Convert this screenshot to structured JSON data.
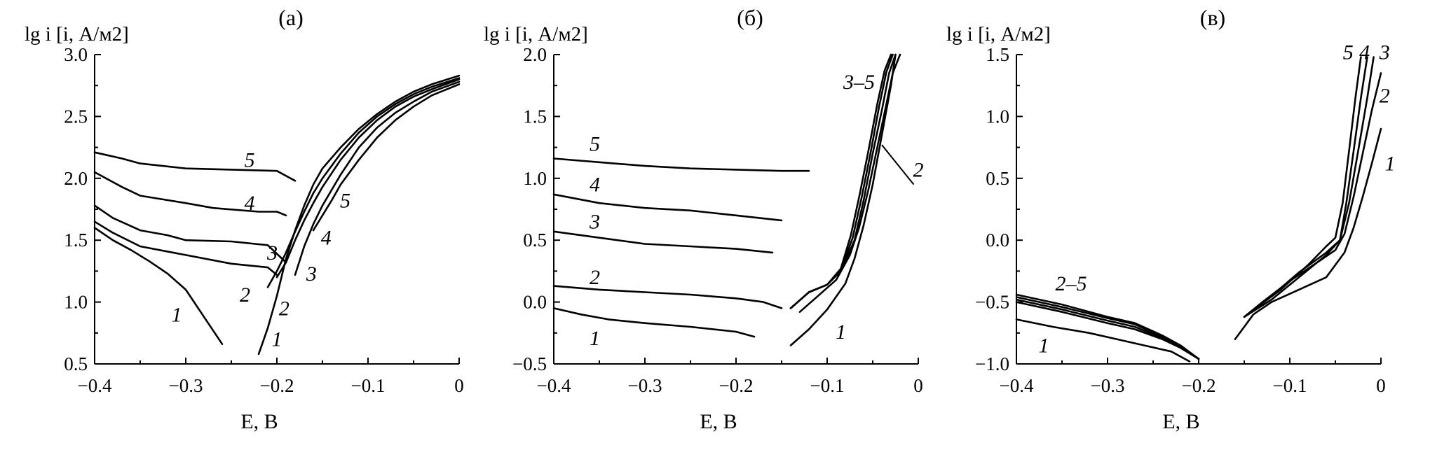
{
  "chart_data": [
    {
      "type": "line",
      "panel_label": "(а)",
      "ylabel": "lg i [i, А/м2]",
      "xlabel": "E, В",
      "xlim": [
        -0.4,
        0
      ],
      "ylim": [
        0.5,
        3.0
      ],
      "xticks": [
        -0.4,
        -0.3,
        -0.2,
        -0.1,
        0
      ],
      "xtick_labels": [
        "−0.4",
        "−0.3",
        "−0.2",
        "−0.1",
        "0"
      ],
      "yticks": [
        0.5,
        1.0,
        1.5,
        2.0,
        2.5,
        3.0
      ],
      "ytick_labels": [
        "0.5",
        "1.0",
        "1.5",
        "2.0",
        "2.5",
        "3.0"
      ],
      "grid": false,
      "series": [
        {
          "name": "1",
          "branch": "cathodic",
          "x": [
            -0.4,
            -0.38,
            -0.36,
            -0.34,
            -0.32,
            -0.3,
            -0.28,
            -0.26
          ],
          "y": [
            1.6,
            1.5,
            1.42,
            1.33,
            1.23,
            1.1,
            0.88,
            0.66
          ]
        },
        {
          "name": "2",
          "branch": "cathodic",
          "x": [
            -0.4,
            -0.38,
            -0.35,
            -0.3,
            -0.25,
            -0.21,
            -0.2
          ],
          "y": [
            1.65,
            1.56,
            1.45,
            1.38,
            1.31,
            1.28,
            1.22
          ]
        },
        {
          "name": "3",
          "branch": "cathodic",
          "x": [
            -0.4,
            -0.38,
            -0.35,
            -0.32,
            -0.3,
            -0.25,
            -0.21,
            -0.19
          ],
          "y": [
            1.78,
            1.68,
            1.58,
            1.54,
            1.5,
            1.49,
            1.46,
            1.32
          ]
        },
        {
          "name": "4",
          "branch": "cathodic",
          "x": [
            -0.4,
            -0.37,
            -0.35,
            -0.3,
            -0.27,
            -0.22,
            -0.2,
            -0.19
          ],
          "y": [
            2.05,
            1.93,
            1.86,
            1.8,
            1.76,
            1.73,
            1.73,
            1.7
          ]
        },
        {
          "name": "5",
          "branch": "cathodic",
          "x": [
            -0.4,
            -0.37,
            -0.35,
            -0.3,
            -0.25,
            -0.2,
            -0.18
          ],
          "y": [
            2.21,
            2.16,
            2.12,
            2.08,
            2.07,
            2.06,
            1.98
          ]
        },
        {
          "name": "1",
          "branch": "anodic",
          "x": [
            -0.22,
            -0.21,
            -0.2,
            -0.19,
            -0.18,
            -0.17,
            -0.16,
            -0.15,
            -0.13,
            -0.11,
            -0.09,
            -0.07,
            -0.05,
            -0.03,
            0.0
          ],
          "y": [
            0.58,
            0.79,
            1.05,
            1.35,
            1.58,
            1.78,
            1.95,
            2.08,
            2.25,
            2.4,
            2.52,
            2.62,
            2.7,
            2.76,
            2.83
          ]
        },
        {
          "name": "2",
          "branch": "anodic",
          "x": [
            -0.21,
            -0.2,
            -0.19,
            -0.18,
            -0.17,
            -0.16,
            -0.15,
            -0.13,
            -0.11,
            -0.09,
            -0.07,
            -0.05,
            -0.03,
            0.0
          ],
          "y": [
            1.12,
            1.25,
            1.4,
            1.57,
            1.73,
            1.88,
            2.0,
            2.2,
            2.37,
            2.5,
            2.6,
            2.68,
            2.74,
            2.81
          ]
        },
        {
          "name": "3",
          "branch": "anodic",
          "x": [
            -0.2,
            -0.19,
            -0.18,
            -0.17,
            -0.16,
            -0.15,
            -0.13,
            -0.11,
            -0.09,
            -0.07,
            -0.05,
            -0.03,
            0.0
          ],
          "y": [
            1.2,
            1.32,
            1.5,
            1.66,
            1.8,
            1.93,
            2.15,
            2.33,
            2.47,
            2.58,
            2.66,
            2.72,
            2.8
          ]
        },
        {
          "name": "4",
          "branch": "anodic",
          "x": [
            -0.18,
            -0.17,
            -0.16,
            -0.15,
            -0.13,
            -0.11,
            -0.09,
            -0.07,
            -0.05,
            -0.03,
            0.0
          ],
          "y": [
            1.22,
            1.45,
            1.63,
            1.78,
            2.03,
            2.25,
            2.41,
            2.53,
            2.62,
            2.7,
            2.78
          ]
        },
        {
          "name": "5",
          "branch": "anodic",
          "x": [
            -0.16,
            -0.15,
            -0.14,
            -0.13,
            -0.11,
            -0.09,
            -0.07,
            -0.05,
            -0.03,
            0.0
          ],
          "y": [
            1.58,
            1.7,
            1.82,
            1.95,
            2.15,
            2.33,
            2.47,
            2.58,
            2.67,
            2.76
          ]
        }
      ],
      "annotations": [
        {
          "text": "1",
          "x": -0.31,
          "y": 0.9
        },
        {
          "text": "2",
          "x": -0.235,
          "y": 1.06
        },
        {
          "text": "3",
          "x": -0.205,
          "y": 1.4
        },
        {
          "text": "4",
          "x": -0.23,
          "y": 1.8
        },
        {
          "text": "5",
          "x": -0.23,
          "y": 2.15
        },
        {
          "text": "1",
          "x": -0.2,
          "y": 0.7
        },
        {
          "text": "2",
          "x": -0.192,
          "y": 0.95
        },
        {
          "text": "3",
          "x": -0.162,
          "y": 1.23
        },
        {
          "text": "4",
          "x": -0.146,
          "y": 1.52
        },
        {
          "text": "5",
          "x": -0.125,
          "y": 1.82
        }
      ]
    },
    {
      "type": "line",
      "panel_label": "(б)",
      "ylabel": "lg i [i, А/м2]",
      "xlabel": "E, В",
      "xlim": [
        -0.4,
        0
      ],
      "ylim": [
        -0.5,
        2.0
      ],
      "xticks": [
        -0.4,
        -0.3,
        -0.2,
        -0.1,
        0
      ],
      "xtick_labels": [
        "−0.4",
        "−0.3",
        "−0.2",
        "−0.1",
        "0"
      ],
      "yticks": [
        -0.5,
        0.0,
        0.5,
        1.0,
        1.5,
        2.0
      ],
      "ytick_labels": [
        "−0.5",
        "0.0",
        "0.5",
        "1.0",
        "1.5",
        "2.0"
      ],
      "grid": false,
      "series": [
        {
          "name": "1",
          "branch": "cathodic",
          "x": [
            -0.4,
            -0.37,
            -0.34,
            -0.3,
            -0.25,
            -0.2,
            -0.18
          ],
          "y": [
            -0.05,
            -0.1,
            -0.14,
            -0.17,
            -0.2,
            -0.24,
            -0.28
          ]
        },
        {
          "name": "2",
          "branch": "cathodic",
          "x": [
            -0.4,
            -0.35,
            -0.3,
            -0.25,
            -0.2,
            -0.17,
            -0.15
          ],
          "y": [
            0.13,
            0.1,
            0.08,
            0.06,
            0.03,
            0.0,
            -0.05
          ]
        },
        {
          "name": "3",
          "branch": "cathodic",
          "x": [
            -0.4,
            -0.35,
            -0.3,
            -0.25,
            -0.2,
            -0.16
          ],
          "y": [
            0.57,
            0.52,
            0.47,
            0.45,
            0.43,
            0.4
          ]
        },
        {
          "name": "4",
          "branch": "cathodic",
          "x": [
            -0.4,
            -0.35,
            -0.3,
            -0.25,
            -0.2,
            -0.15
          ],
          "y": [
            0.87,
            0.8,
            0.76,
            0.74,
            0.7,
            0.66
          ]
        },
        {
          "name": "5",
          "branch": "cathodic",
          "x": [
            -0.4,
            -0.35,
            -0.3,
            -0.25,
            -0.2,
            -0.15,
            -0.12
          ],
          "y": [
            1.16,
            1.13,
            1.1,
            1.08,
            1.07,
            1.06,
            1.06
          ]
        },
        {
          "name": "1",
          "branch": "anodic",
          "x": [
            -0.14,
            -0.12,
            -0.1,
            -0.08,
            -0.07,
            -0.06,
            -0.05,
            -0.04,
            -0.03,
            -0.025
          ],
          "y": [
            -0.35,
            -0.22,
            -0.06,
            0.15,
            0.35,
            0.62,
            0.95,
            1.35,
            1.75,
            2.0
          ]
        },
        {
          "name": "2",
          "branch": "anodic",
          "x": [
            -0.13,
            -0.11,
            -0.09,
            -0.075,
            -0.065,
            -0.055,
            -0.045,
            -0.035,
            -0.028,
            -0.02
          ],
          "y": [
            -0.08,
            0.05,
            0.18,
            0.38,
            0.6,
            0.9,
            1.25,
            1.6,
            1.85,
            2.0
          ]
        },
        {
          "name": "3",
          "branch": "anodic",
          "x": [
            -0.14,
            -0.12,
            -0.1,
            -0.085,
            -0.07,
            -0.06,
            -0.05,
            -0.04,
            -0.032,
            -0.025
          ],
          "y": [
            -0.05,
            0.08,
            0.14,
            0.25,
            0.5,
            0.82,
            1.2,
            1.55,
            1.85,
            2.0
          ]
        },
        {
          "name": "4",
          "branch": "anodic",
          "x": [
            -0.14,
            -0.12,
            -0.1,
            -0.085,
            -0.072,
            -0.062,
            -0.052,
            -0.043,
            -0.035,
            -0.028
          ],
          "y": [
            -0.05,
            0.08,
            0.14,
            0.26,
            0.52,
            0.85,
            1.22,
            1.58,
            1.86,
            2.0
          ]
        },
        {
          "name": "5",
          "branch": "anodic",
          "x": [
            -0.14,
            -0.12,
            -0.1,
            -0.085,
            -0.074,
            -0.064,
            -0.054,
            -0.045,
            -0.037,
            -0.03
          ],
          "y": [
            -0.05,
            0.08,
            0.14,
            0.27,
            0.54,
            0.88,
            1.25,
            1.6,
            1.87,
            2.0
          ]
        }
      ],
      "annotations": [
        {
          "text": "1",
          "x": -0.355,
          "y": -0.29
        },
        {
          "text": "2",
          "x": -0.355,
          "y": 0.2
        },
        {
          "text": "3",
          "x": -0.355,
          "y": 0.65
        },
        {
          "text": "4",
          "x": -0.355,
          "y": 0.95
        },
        {
          "text": "5",
          "x": -0.355,
          "y": 1.28
        },
        {
          "text": "1",
          "x": -0.085,
          "y": -0.24
        },
        {
          "text": "2",
          "x": 0.0,
          "y": 1.07
        },
        {
          "text": "3–5",
          "x": -0.065,
          "y": 1.78
        }
      ]
    },
    {
      "type": "line",
      "panel_label": "(в)",
      "ylabel": "lg i [i, А/м2]",
      "xlabel": "E, В",
      "xlim": [
        -0.4,
        0
      ],
      "ylim": [
        -1.0,
        1.5
      ],
      "xticks": [
        -0.4,
        -0.3,
        -0.2,
        -0.1,
        0
      ],
      "xtick_labels": [
        "−0.4",
        "−0.3",
        "−0.2",
        "−0.1",
        "0"
      ],
      "yticks": [
        -1.0,
        -0.5,
        0.0,
        0.5,
        1.0,
        1.5
      ],
      "ytick_labels": [
        "−1.0",
        "−0.5",
        "0.0",
        "0.5",
        "1.0",
        "1.5"
      ],
      "grid": false,
      "series": [
        {
          "name": "1",
          "branch": "cathodic",
          "x": [
            -0.4,
            -0.36,
            -0.32,
            -0.29,
            -0.26,
            -0.23,
            -0.21
          ],
          "y": [
            -0.64,
            -0.7,
            -0.75,
            -0.8,
            -0.85,
            -0.9,
            -0.98
          ]
        },
        {
          "name": "2",
          "branch": "cathodic",
          "x": [
            -0.4,
            -0.35,
            -0.3,
            -0.27,
            -0.24,
            -0.22,
            -0.2
          ],
          "y": [
            -0.5,
            -0.58,
            -0.67,
            -0.72,
            -0.8,
            -0.87,
            -0.96
          ]
        },
        {
          "name": "3",
          "branch": "cathodic",
          "x": [
            -0.4,
            -0.35,
            -0.3,
            -0.27,
            -0.24,
            -0.22,
            -0.2
          ],
          "y": [
            -0.48,
            -0.56,
            -0.65,
            -0.7,
            -0.79,
            -0.86,
            -0.96
          ]
        },
        {
          "name": "4",
          "branch": "cathodic",
          "x": [
            -0.4,
            -0.35,
            -0.3,
            -0.27,
            -0.24,
            -0.22,
            -0.2
          ],
          "y": [
            -0.46,
            -0.54,
            -0.63,
            -0.68,
            -0.78,
            -0.85,
            -0.96
          ]
        },
        {
          "name": "5",
          "branch": "cathodic",
          "x": [
            -0.4,
            -0.35,
            -0.3,
            -0.27,
            -0.24,
            -0.22,
            -0.2
          ],
          "y": [
            -0.44,
            -0.52,
            -0.62,
            -0.67,
            -0.77,
            -0.85,
            -0.96
          ]
        },
        {
          "name": "1",
          "branch": "anodic",
          "x": [
            -0.16,
            -0.14,
            -0.12,
            -0.09,
            -0.06,
            -0.04,
            -0.03,
            -0.02,
            -0.01,
            0.0
          ],
          "y": [
            -0.8,
            -0.6,
            -0.5,
            -0.4,
            -0.3,
            -0.1,
            0.1,
            0.35,
            0.62,
            0.9
          ]
        },
        {
          "name": "2",
          "branch": "anodic",
          "x": [
            -0.15,
            -0.13,
            -0.1,
            -0.07,
            -0.05,
            -0.04,
            -0.03,
            -0.02,
            -0.01,
            0.0
          ],
          "y": [
            -0.62,
            -0.5,
            -0.33,
            -0.18,
            -0.08,
            0.05,
            0.35,
            0.7,
            1.05,
            1.35
          ]
        },
        {
          "name": "3",
          "branch": "anodic",
          "x": [
            -0.15,
            -0.12,
            -0.09,
            -0.06,
            -0.045,
            -0.035,
            -0.025,
            -0.015,
            -0.008
          ],
          "y": [
            -0.62,
            -0.48,
            -0.3,
            -0.12,
            0.0,
            0.3,
            0.72,
            1.15,
            1.48
          ]
        },
        {
          "name": "4",
          "branch": "anodic",
          "x": [
            -0.15,
            -0.12,
            -0.09,
            -0.06,
            -0.045,
            -0.038,
            -0.03,
            -0.022,
            -0.015
          ],
          "y": [
            -0.62,
            -0.45,
            -0.26,
            -0.1,
            0.0,
            0.3,
            0.72,
            1.15,
            1.48
          ]
        },
        {
          "name": "5",
          "branch": "anodic",
          "x": [
            -0.15,
            -0.11,
            -0.08,
            -0.06,
            -0.05,
            -0.042,
            -0.035,
            -0.028,
            -0.022
          ],
          "y": [
            -0.62,
            -0.4,
            -0.2,
            -0.05,
            0.02,
            0.3,
            0.72,
            1.15,
            1.48
          ]
        }
      ],
      "annotations": [
        {
          "text": "1",
          "x": -0.37,
          "y": -0.85
        },
        {
          "text": "2–5",
          "x": -0.34,
          "y": -0.35
        },
        {
          "text": "5",
          "x": -0.036,
          "y": 1.52
        },
        {
          "text": "4",
          "x": -0.018,
          "y": 1.52
        },
        {
          "text": "3",
          "x": 0.004,
          "y": 1.52
        },
        {
          "text": "2",
          "x": 0.004,
          "y": 1.17
        },
        {
          "text": "1",
          "x": 0.01,
          "y": 0.62
        }
      ]
    }
  ]
}
